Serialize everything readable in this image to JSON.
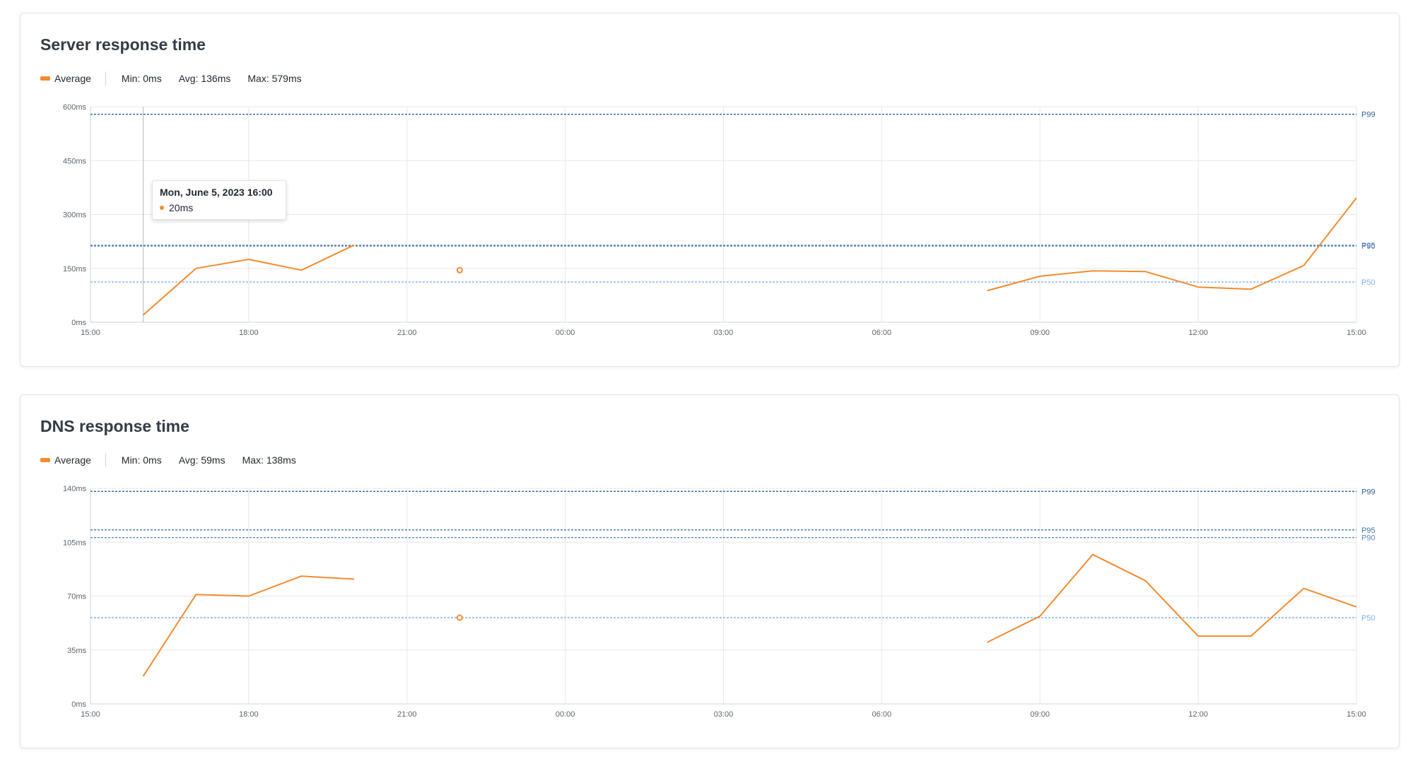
{
  "colors": {
    "series": "#f38b2f",
    "p99": "#2f5f95",
    "p95": "#4672aa",
    "p90": "#5b86c4",
    "p50": "#7fb0ea",
    "grid": "#e6e8eb",
    "axis_text": "#5d646b"
  },
  "charts": [
    {
      "title": "Server response time",
      "legend": {
        "series_label": "Average",
        "min": "Min: 0ms",
        "avg": "Avg: 136ms",
        "max": "Max: 579ms"
      },
      "tooltip": {
        "title": "Mon, June 5, 2023 16:00",
        "value": "20ms"
      }
    },
    {
      "title": "DNS response time",
      "legend": {
        "series_label": "Average",
        "min": "Min: 0ms",
        "avg": "Avg: 59ms",
        "max": "Max: 138ms"
      }
    }
  ],
  "chart_data": [
    {
      "type": "line",
      "title": "Server response time",
      "unit": "ms",
      "ylim": [
        0,
        600
      ],
      "y_ticks": [
        "0ms",
        "150ms",
        "300ms",
        "450ms",
        "600ms"
      ],
      "x_ticks": [
        "15:00",
        "18:00",
        "21:00",
        "00:00",
        "03:00",
        "06:00",
        "09:00",
        "12:00",
        "15:00"
      ],
      "x_range_hours": [
        0,
        24
      ],
      "grid": true,
      "series": [
        {
          "name": "Average",
          "segments": [
            [
              [
                1,
                20
              ],
              [
                2,
                150
              ],
              [
                3,
                175
              ],
              [
                4,
                145
              ],
              [
                5,
                215
              ]
            ],
            [
              [
                7,
                145
              ]
            ],
            [
              [
                17,
                88
              ],
              [
                18,
                128
              ],
              [
                19,
                143
              ],
              [
                20,
                141
              ],
              [
                21,
                98
              ],
              [
                22,
                92
              ],
              [
                23,
                158
              ],
              [
                24,
                346
              ]
            ]
          ]
        }
      ],
      "percentiles": [
        {
          "label": "P99",
          "value": 579
        },
        {
          "label": "P95",
          "value": 214
        },
        {
          "label": "P90",
          "value": 212
        },
        {
          "label": "P50",
          "value": 112
        }
      ],
      "hover_x": 1
    },
    {
      "type": "line",
      "title": "DNS response time",
      "unit": "ms",
      "ylim": [
        0,
        140
      ],
      "y_ticks": [
        "0ms",
        "35ms",
        "70ms",
        "105ms",
        "140ms"
      ],
      "x_ticks": [
        "15:00",
        "18:00",
        "21:00",
        "00:00",
        "03:00",
        "06:00",
        "09:00",
        "12:00",
        "15:00"
      ],
      "x_range_hours": [
        0,
        24
      ],
      "grid": true,
      "series": [
        {
          "name": "Average",
          "segments": [
            [
              [
                1,
                18
              ],
              [
                2,
                71
              ],
              [
                3,
                70
              ],
              [
                4,
                83
              ],
              [
                5,
                81
              ]
            ],
            [
              [
                7,
                56
              ]
            ],
            [
              [
                17,
                40
              ],
              [
                18,
                57
              ],
              [
                19,
                97
              ],
              [
                20,
                80
              ],
              [
                21,
                44
              ],
              [
                22,
                44
              ],
              [
                23,
                75
              ],
              [
                24,
                63
              ]
            ]
          ]
        }
      ],
      "percentiles": [
        {
          "label": "P99",
          "value": 138
        },
        {
          "label": "P95",
          "value": 113
        },
        {
          "label": "P90",
          "value": 108
        },
        {
          "label": "P50",
          "value": 56
        }
      ]
    }
  ]
}
